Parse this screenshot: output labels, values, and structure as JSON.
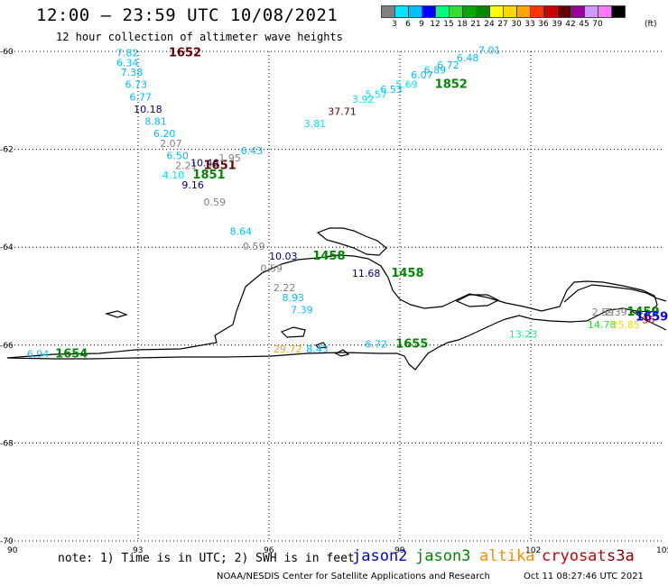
{
  "header": {
    "title": "12:00 – 23:59 UTC 10/08/2021",
    "subtitle": "12 hour collection of altimeter wave heights"
  },
  "colorbar": {
    "unit": "(ft)",
    "cells": [
      {
        "color": "#808080",
        "label": ""
      },
      {
        "color": "#00e5ff",
        "label": "3"
      },
      {
        "color": "#00bfff",
        "label": "6"
      },
      {
        "color": "#0000ff",
        "label": "9"
      },
      {
        "color": "#00ff80",
        "label": "12"
      },
      {
        "color": "#33dd33",
        "label": "15"
      },
      {
        "color": "#00aa00",
        "label": "18"
      },
      {
        "color": "#008800",
        "label": "21"
      },
      {
        "color": "#ffff00",
        "label": "24"
      },
      {
        "color": "#ffd700",
        "label": "27"
      },
      {
        "color": "#ffa500",
        "label": "30"
      },
      {
        "color": "#ff3300",
        "label": "33"
      },
      {
        "color": "#cc0000",
        "label": "36"
      },
      {
        "color": "#660000",
        "label": "39"
      },
      {
        "color": "#990099",
        "label": "42"
      },
      {
        "color": "#cc99ff",
        "label": "45"
      },
      {
        "color": "#ff77ff",
        "label": "70"
      },
      {
        "color": "#000000",
        "label": ""
      }
    ]
  },
  "map": {
    "lat_labels": [
      "-60",
      "-62",
      "-64",
      "-66",
      "-68",
      "-70"
    ],
    "lon_labels": [
      "90",
      "93",
      "96",
      "99",
      "102",
      "105"
    ],
    "lon_range": [
      90,
      105
    ],
    "lat_range": [
      -70,
      -60
    ],
    "observations": [
      {
        "lon": 93.7,
        "lat": -60.1,
        "text": "1652",
        "color": "#660000",
        "kind": "time"
      },
      {
        "lon": 92.5,
        "lat": -60.1,
        "text": "7.82",
        "color": "#00bfff"
      },
      {
        "lon": 92.5,
        "lat": -60.3,
        "text": "6.34",
        "color": "#00bfff"
      },
      {
        "lon": 92.6,
        "lat": -60.5,
        "text": "7.38",
        "color": "#00bfff"
      },
      {
        "lon": 92.7,
        "lat": -60.75,
        "text": "6.73",
        "color": "#00bfff"
      },
      {
        "lon": 92.8,
        "lat": -61.0,
        "text": "6.77",
        "color": "#00bfff"
      },
      {
        "lon": 92.9,
        "lat": -61.25,
        "text": "10.18",
        "color": "#000080"
      },
      {
        "lon": 93.15,
        "lat": -61.5,
        "text": "8.81",
        "color": "#00bfff"
      },
      {
        "lon": 93.35,
        "lat": -61.75,
        "text": "6.20",
        "color": "#00bfff"
      },
      {
        "lon": 93.5,
        "lat": -61.95,
        "text": "2.07",
        "color": "#808080"
      },
      {
        "lon": 93.65,
        "lat": -62.2,
        "text": "6.50",
        "color": "#00bfff"
      },
      {
        "lon": 93.85,
        "lat": -62.4,
        "text": "2.21",
        "color": "#808080"
      },
      {
        "lon": 94.2,
        "lat": -62.35,
        "text": "10.46",
        "color": "#000080"
      },
      {
        "lon": 94.5,
        "lat": -62.4,
        "text": "1651",
        "color": "#660000",
        "kind": "time"
      },
      {
        "lon": 94.85,
        "lat": -62.25,
        "text": "1.95",
        "color": "#808080"
      },
      {
        "lon": 95.35,
        "lat": -62.1,
        "text": "6.43",
        "color": "#00bfff"
      },
      {
        "lon": 93.55,
        "lat": -62.6,
        "text": "4.10",
        "color": "#00e5ff"
      },
      {
        "lon": 94.25,
        "lat": -62.6,
        "text": "1851",
        "color": "#008800",
        "kind": "time"
      },
      {
        "lon": 94.0,
        "lat": -62.8,
        "text": "9.16",
        "color": "#000080"
      },
      {
        "lon": 94.5,
        "lat": -63.15,
        "text": "0.59",
        "color": "#808080"
      },
      {
        "lon": 95.1,
        "lat": -63.75,
        "text": "8.64",
        "color": "#00bfff"
      },
      {
        "lon": 95.4,
        "lat": -64.05,
        "text": "0.59",
        "color": "#808080"
      },
      {
        "lon": 96.0,
        "lat": -64.25,
        "text": "10.03",
        "color": "#000080"
      },
      {
        "lon": 97.0,
        "lat": -64.25,
        "text": "1458",
        "color": "#008800",
        "kind": "time"
      },
      {
        "lon": 95.8,
        "lat": -64.5,
        "text": "0.59",
        "color": "#808080"
      },
      {
        "lon": 97.9,
        "lat": -64.6,
        "text": "11.68",
        "color": "#000080"
      },
      {
        "lon": 98.8,
        "lat": -64.6,
        "text": "1458",
        "color": "#008800",
        "kind": "time"
      },
      {
        "lon": 96.1,
        "lat": -64.9,
        "text": "2.22",
        "color": "#808080"
      },
      {
        "lon": 96.3,
        "lat": -65.1,
        "text": "8.93",
        "color": "#00bfff"
      },
      {
        "lon": 96.5,
        "lat": -65.35,
        "text": "7.39",
        "color": "#00bfff"
      },
      {
        "lon": 96.1,
        "lat": -66.15,
        "text": "29.72",
        "color": "#ffa500"
      },
      {
        "lon": 96.85,
        "lat": -66.15,
        "text": "8.43",
        "color": "#00bfff"
      },
      {
        "lon": 98.2,
        "lat": -66.05,
        "text": "6.72",
        "color": "#00bfff"
      },
      {
        "lon": 98.9,
        "lat": -66.05,
        "text": "1655",
        "color": "#008800",
        "kind": "time"
      },
      {
        "lon": 90.45,
        "lat": -66.25,
        "text": "6.94",
        "color": "#00bfff"
      },
      {
        "lon": 91.1,
        "lat": -66.25,
        "text": "1654",
        "color": "#008800",
        "kind": "time"
      },
      {
        "lon": 96.8,
        "lat": -61.55,
        "text": "3.81",
        "color": "#00e5ff"
      },
      {
        "lon": 97.35,
        "lat": -61.3,
        "text": "37.71",
        "color": "#660000"
      },
      {
        "lon": 97.9,
        "lat": -61.05,
        "text": "3.92",
        "color": "#00e5ff"
      },
      {
        "lon": 98.2,
        "lat": -60.95,
        "text": "5.57",
        "color": "#00e5ff"
      },
      {
        "lon": 98.55,
        "lat": -60.85,
        "text": "6.53",
        "color": "#00bfff"
      },
      {
        "lon": 98.9,
        "lat": -60.75,
        "text": "5.69",
        "color": "#00e5ff"
      },
      {
        "lon": 99.25,
        "lat": -60.55,
        "text": "6.07",
        "color": "#00bfff"
      },
      {
        "lon": 99.55,
        "lat": -60.45,
        "text": "6.89",
        "color": "#00bfff"
      },
      {
        "lon": 99.8,
        "lat": -60.75,
        "text": "1852",
        "color": "#008800",
        "kind": "time"
      },
      {
        "lon": 99.85,
        "lat": -60.35,
        "text": "6.72",
        "color": "#00bfff"
      },
      {
        "lon": 100.3,
        "lat": -60.2,
        "text": "6.48",
        "color": "#00bfff"
      },
      {
        "lon": 100.8,
        "lat": -60.05,
        "text": "7.01",
        "color": "#00bfff"
      },
      {
        "lon": 101.5,
        "lat": -65.85,
        "text": "13.23",
        "color": "#00ff80"
      },
      {
        "lon": 103.4,
        "lat": -65.4,
        "text": "2.59",
        "color": "#808080"
      },
      {
        "lon": 103.7,
        "lat": -65.4,
        "text": "2.39",
        "color": "#808080"
      },
      {
        "lon": 104.2,
        "lat": -65.4,
        "text": "1459",
        "color": "#008800",
        "kind": "time"
      },
      {
        "lon": 104.4,
        "lat": -65.5,
        "text": "1659",
        "color": "#0000ff",
        "kind": "time"
      },
      {
        "lon": 103.3,
        "lat": -65.65,
        "text": "14.78",
        "color": "#33dd33"
      },
      {
        "lon": 103.85,
        "lat": -65.65,
        "text": "25.85",
        "color": "#ffd700"
      },
      {
        "lon": 104.55,
        "lat": -65.55,
        "text": "36",
        "color": "#cc0000"
      }
    ]
  },
  "footer": {
    "note": "note:  1) Time is in UTC;  2) SWH is in feet",
    "satellites": [
      {
        "name": "jason2",
        "color": "#0000cc"
      },
      {
        "name": "jason3",
        "color": "#008800"
      },
      {
        "name": "altika",
        "color": "#ff8800"
      },
      {
        "name": "cryosat",
        "color": "#cc0000"
      },
      {
        "name": "s3a",
        "color": "#880000"
      }
    ],
    "credit": "NOAA/NESDIS Center for Satellite Applications and Research",
    "timestamp": "Oct 11 08:27:46 UTC 2021"
  }
}
